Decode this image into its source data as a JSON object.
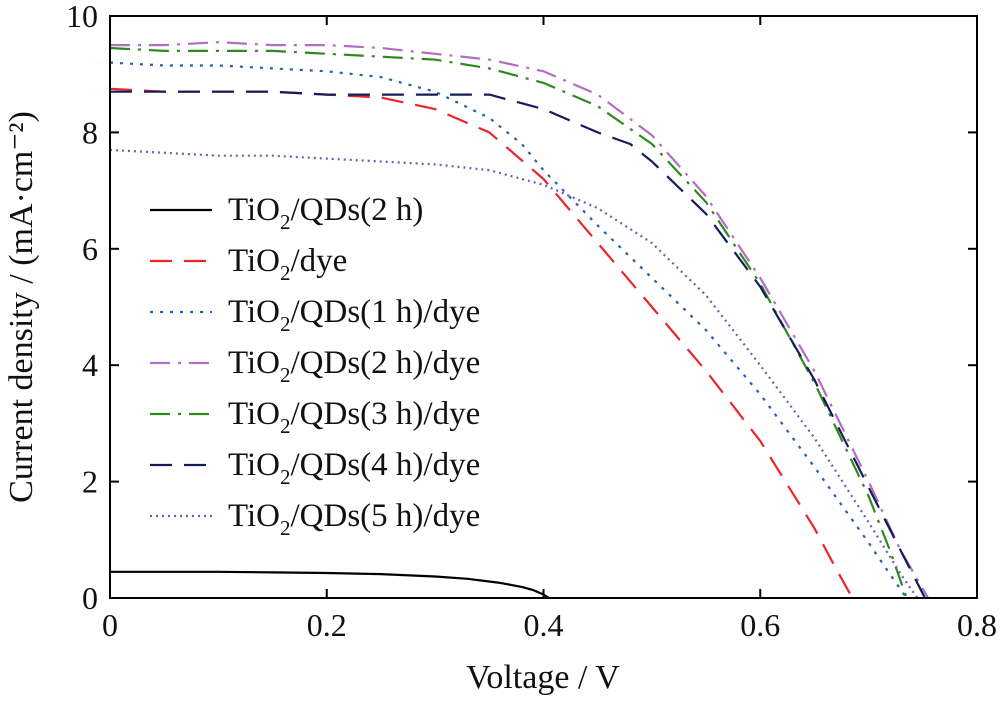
{
  "chart_data": {
    "type": "line",
    "xlabel": "Voltage / V",
    "ylabel": "Current density / (mA·cm⁻²)",
    "xlim": [
      0,
      0.8
    ],
    "ylim": [
      0,
      10
    ],
    "xticks": [
      0,
      0.2,
      0.4,
      0.6,
      0.8
    ],
    "xtick_labels": [
      "0",
      "0.2",
      "0.4",
      "0.6",
      "0.8"
    ],
    "yticks": [
      0,
      2,
      4,
      6,
      8,
      10
    ],
    "ytick_labels": [
      "0",
      "2",
      "4",
      "6",
      "8",
      "10"
    ],
    "grid": false,
    "legend_position": "left",
    "series": [
      {
        "name": "TiO2/QDs(2 h)",
        "label_parts": [
          "TiO",
          "2",
          "/QDs(2 h)"
        ],
        "color": "#000000",
        "style": "solid",
        "x": [
          0,
          0.05,
          0.1,
          0.15,
          0.2,
          0.25,
          0.3,
          0.33,
          0.36,
          0.38,
          0.39,
          0.4,
          0.405
        ],
        "y": [
          0.45,
          0.45,
          0.45,
          0.44,
          0.43,
          0.41,
          0.37,
          0.33,
          0.26,
          0.19,
          0.14,
          0.06,
          0
        ]
      },
      {
        "name": "TiO2/dye",
        "label_parts": [
          "TiO",
          "2",
          "/dye"
        ],
        "color": "#e8262b",
        "style": "dashed",
        "x": [
          0,
          0.05,
          0.1,
          0.15,
          0.2,
          0.25,
          0.3,
          0.35,
          0.4,
          0.45,
          0.5,
          0.55,
          0.6,
          0.65,
          0.67,
          0.685
        ],
        "y": [
          8.75,
          8.7,
          8.7,
          8.7,
          8.65,
          8.6,
          8.4,
          8.0,
          7.2,
          6.1,
          5.0,
          3.9,
          2.7,
          1.2,
          0.5,
          0
        ]
      },
      {
        "name": "TiO2/QDs(1 h)/dye",
        "label_parts": [
          "TiO",
          "2",
          "/QDs(1 h)/dye"
        ],
        "color": "#1f62b4",
        "style": "dotted",
        "x": [
          0,
          0.05,
          0.1,
          0.15,
          0.2,
          0.25,
          0.3,
          0.35,
          0.38,
          0.4,
          0.45,
          0.5,
          0.55,
          0.6,
          0.65,
          0.7,
          0.72,
          0.735
        ],
        "y": [
          9.2,
          9.15,
          9.15,
          9.1,
          9.05,
          8.95,
          8.7,
          8.25,
          7.8,
          7.35,
          6.4,
          5.5,
          4.6,
          3.5,
          2.25,
          0.95,
          0.4,
          0
        ]
      },
      {
        "name": "TiO2/QDs(2 h)/dye",
        "label_parts": [
          "TiO",
          "2",
          "/QDs(2 h)/dye"
        ],
        "color": "#b06fc1",
        "style": "dashdot",
        "x": [
          0,
          0.05,
          0.1,
          0.15,
          0.2,
          0.25,
          0.3,
          0.35,
          0.4,
          0.45,
          0.5,
          0.55,
          0.6,
          0.65,
          0.7,
          0.73,
          0.755
        ],
        "y": [
          9.5,
          9.5,
          9.55,
          9.5,
          9.5,
          9.45,
          9.35,
          9.25,
          9.05,
          8.65,
          7.95,
          6.9,
          5.5,
          3.9,
          2.0,
          0.8,
          0
        ]
      },
      {
        "name": "TiO2/QDs(3 h)/dye",
        "label_parts": [
          "TiO",
          "2",
          "/QDs(3 h)/dye"
        ],
        "color": "#2e8a1e",
        "style": "dashdot",
        "x": [
          0,
          0.05,
          0.1,
          0.15,
          0.2,
          0.25,
          0.3,
          0.35,
          0.4,
          0.45,
          0.5,
          0.55,
          0.6,
          0.65,
          0.7,
          0.72,
          0.735
        ],
        "y": [
          9.45,
          9.4,
          9.4,
          9.4,
          9.35,
          9.3,
          9.25,
          9.1,
          8.85,
          8.45,
          7.8,
          6.8,
          5.4,
          3.7,
          1.75,
          0.8,
          0
        ]
      },
      {
        "name": "TiO2/QDs(4 h)/dye",
        "label_parts": [
          "TiO",
          "2",
          "/QDs(4 h)/dye"
        ],
        "color": "#141d5c",
        "style": "dashed",
        "x": [
          0,
          0.05,
          0.1,
          0.15,
          0.2,
          0.25,
          0.3,
          0.35,
          0.4,
          0.45,
          0.48,
          0.5,
          0.55,
          0.6,
          0.65,
          0.7,
          0.73,
          0.752
        ],
        "y": [
          8.7,
          8.7,
          8.7,
          8.7,
          8.65,
          8.65,
          8.65,
          8.65,
          8.4,
          8.0,
          7.8,
          7.5,
          6.6,
          5.35,
          3.75,
          1.9,
          0.8,
          0
        ]
      },
      {
        "name": "TiO2/QDs(5 h)/dye",
        "label_parts": [
          "TiO",
          "2",
          "/QDs(5 h)/dye"
        ],
        "color": "#6a5fb2",
        "style": "finedot",
        "x": [
          0,
          0.05,
          0.1,
          0.15,
          0.2,
          0.25,
          0.3,
          0.35,
          0.4,
          0.45,
          0.5,
          0.55,
          0.6,
          0.65,
          0.7,
          0.73,
          0.745
        ],
        "y": [
          7.7,
          7.65,
          7.6,
          7.6,
          7.55,
          7.5,
          7.45,
          7.35,
          7.1,
          6.7,
          6.1,
          5.2,
          4.0,
          2.75,
          1.3,
          0.4,
          0
        ]
      }
    ]
  }
}
